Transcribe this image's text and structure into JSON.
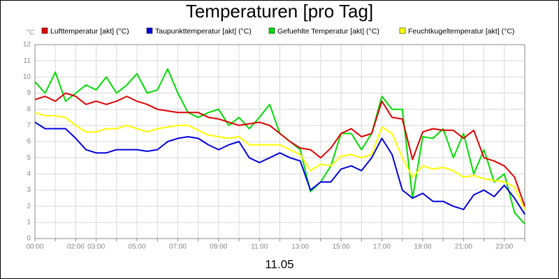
{
  "chart_data": {
    "type": "line",
    "title": "Temperaturen [pro Tag]",
    "xlabel": "11.05",
    "ylabel": "°C",
    "grid": true,
    "x": [
      0,
      0.5,
      1,
      1.5,
      2,
      2.5,
      3,
      3.5,
      4,
      4.5,
      5,
      5.5,
      6,
      6.5,
      7,
      7.5,
      8,
      8.5,
      9,
      9.5,
      10,
      10.5,
      11,
      11.5,
      12,
      12.5,
      13,
      13.5,
      14,
      14.5,
      15,
      15.5,
      16,
      16.5,
      17,
      17.5,
      18,
      18.5,
      19,
      19.5,
      20,
      20.5,
      21,
      21.5,
      22,
      22.5,
      23,
      23.5,
      24
    ],
    "xlim": [
      0,
      24
    ],
    "xticks": [
      {
        "value": 0,
        "label": "00:00"
      },
      {
        "value": 2,
        "label": "02:00"
      },
      {
        "value": 3,
        "label": "03:00"
      },
      {
        "value": 5,
        "label": "05:00"
      },
      {
        "value": 7,
        "label": "07:00"
      },
      {
        "value": 9,
        "label": "09:00"
      },
      {
        "value": 11,
        "label": "11:00"
      },
      {
        "value": 13,
        "label": "13:00"
      },
      {
        "value": 15,
        "label": "15:00"
      },
      {
        "value": 17,
        "label": "17:00"
      },
      {
        "value": 19,
        "label": "19:00"
      },
      {
        "value": 21,
        "label": "21:00"
      },
      {
        "value": 23,
        "label": "23:00"
      }
    ],
    "x_minor_ticks": [
      1,
      4,
      6,
      8,
      10,
      12,
      14,
      16,
      18,
      20,
      22,
      24
    ],
    "ylim": [
      0,
      12
    ],
    "yticks": [
      0,
      1,
      2,
      3,
      4,
      5,
      6,
      7,
      8,
      9,
      10,
      11,
      12
    ],
    "series": [
      {
        "name": "Lufttemperatur [akt] (°C)",
        "color": "#dd0000",
        "values": [
          8.6,
          8.8,
          8.5,
          9.0,
          8.8,
          8.3,
          8.5,
          8.3,
          8.5,
          8.8,
          8.5,
          8.3,
          8.0,
          7.9,
          7.8,
          7.8,
          7.8,
          7.5,
          7.4,
          7.2,
          7.0,
          7.1,
          7.2,
          7.0,
          6.5,
          6.0,
          5.6,
          5.5,
          5.0,
          5.6,
          6.5,
          6.8,
          6.3,
          6.5,
          8.5,
          7.5,
          7.4,
          4.9,
          6.6,
          6.8,
          6.7,
          6.7,
          6.2,
          6.7,
          5.0,
          4.8,
          4.5,
          3.8,
          2.0
        ]
      },
      {
        "name": "Taupunkttemperatur [akt] (°C)",
        "color": "#0000dd",
        "values": [
          7.2,
          6.8,
          6.8,
          6.8,
          6.2,
          5.5,
          5.3,
          5.3,
          5.5,
          5.5,
          5.5,
          5.4,
          5.5,
          6.0,
          6.2,
          6.3,
          6.2,
          5.8,
          5.5,
          5.8,
          6.0,
          5.0,
          4.7,
          5.0,
          5.3,
          5.0,
          4.8,
          3.0,
          3.5,
          3.5,
          4.3,
          4.5,
          4.2,
          5.0,
          6.2,
          5.2,
          3.0,
          2.5,
          2.8,
          2.3,
          2.3,
          2.0,
          1.8,
          2.7,
          3.0,
          2.6,
          3.3,
          2.5,
          1.5
        ]
      },
      {
        "name": "Gefuehlte Temperatur [akt] (°C)",
        "color": "#00dd00",
        "values": [
          9.7,
          9.0,
          10.3,
          8.5,
          9.0,
          9.5,
          9.2,
          10.0,
          9.0,
          9.5,
          10.2,
          9.0,
          9.2,
          10.5,
          9.0,
          7.8,
          7.5,
          7.8,
          8.0,
          7.0,
          7.5,
          6.8,
          7.5,
          8.3,
          6.5,
          6.0,
          5.5,
          2.9,
          3.5,
          4.5,
          6.5,
          6.5,
          5.5,
          6.5,
          8.8,
          8.0,
          8.0,
          2.5,
          6.3,
          6.2,
          6.8,
          5.0,
          6.5,
          4.0,
          5.5,
          3.5,
          4.0,
          1.6,
          0.9
        ]
      },
      {
        "name": "Feuchtkugeltemperatur [akt] (°C)",
        "color": "#ffff00",
        "values": [
          7.8,
          7.6,
          7.6,
          7.5,
          7.0,
          6.6,
          6.6,
          6.8,
          6.8,
          7.0,
          6.8,
          6.6,
          6.8,
          6.9,
          7.0,
          7.0,
          6.7,
          6.4,
          6.3,
          6.2,
          6.3,
          5.8,
          5.8,
          5.8,
          5.8,
          5.5,
          5.2,
          4.2,
          4.6,
          4.5,
          5.1,
          5.2,
          5.0,
          5.2,
          6.9,
          6.5,
          5.0,
          3.8,
          4.5,
          4.3,
          4.4,
          4.2,
          3.8,
          3.9,
          3.7,
          3.6,
          3.5,
          3.2,
          1.8
        ]
      }
    ]
  }
}
